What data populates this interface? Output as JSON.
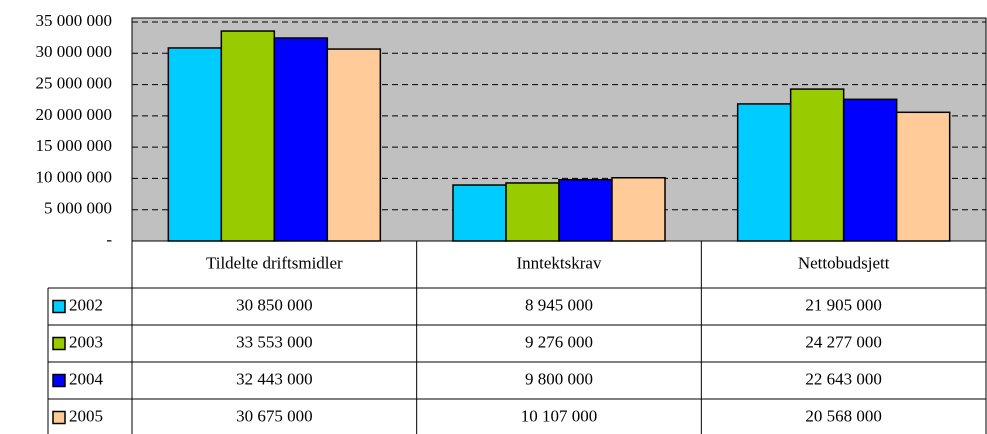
{
  "chart_data": {
    "type": "bar",
    "categories": [
      "Tildelte driftsmidler",
      "Inntektskrav",
      "Nettobudsjett"
    ],
    "series": [
      {
        "name": "2002",
        "color": "#00ccff",
        "values": [
          30850000,
          8945000,
          21905000
        ],
        "value_labels": [
          "30 850 000",
          "8 945 000",
          "21 905 000"
        ]
      },
      {
        "name": "2003",
        "color": "#99cc00",
        "values": [
          33553000,
          9276000,
          24277000
        ],
        "value_labels": [
          "33 553 000",
          "9 276 000",
          "24 277 000"
        ]
      },
      {
        "name": "2004",
        "color": "#0000ff",
        "values": [
          32443000,
          9800000,
          22643000
        ],
        "value_labels": [
          "32 443 000",
          "9 800 000",
          "22 643 000"
        ]
      },
      {
        "name": "2005",
        "color": "#ffcc99",
        "values": [
          30675000,
          10107000,
          20568000
        ],
        "value_labels": [
          "30 675 000",
          "10 107 000",
          "20 568 000"
        ]
      }
    ],
    "ylim": [
      0,
      35000000
    ],
    "yticks": [
      {
        "value": 0,
        "label": "-"
      },
      {
        "value": 5000000,
        "label": "5 000 000"
      },
      {
        "value": 10000000,
        "label": "10 000 000"
      },
      {
        "value": 15000000,
        "label": "15 000 000"
      },
      {
        "value": 20000000,
        "label": "20 000 000"
      },
      {
        "value": 25000000,
        "label": "25 000 000"
      },
      {
        "value": 30000000,
        "label": "30 000 000"
      },
      {
        "value": 35000000,
        "label": "35 000 000"
      }
    ],
    "grid": true,
    "plot_background": "#c0c0c0"
  }
}
